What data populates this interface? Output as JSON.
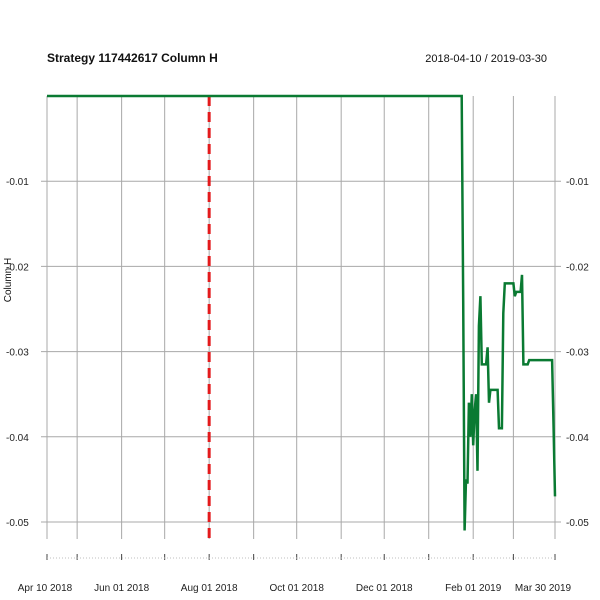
{
  "chart_data": {
    "type": "line",
    "title": "Strategy 117442617 Column H",
    "date_range_label": "2018-04-10 / 2019-03-30",
    "ylabel": "Column H",
    "xlabel": "",
    "x_tick_labels": [
      "Apr 10 2018",
      "Jun 01 2018",
      "Aug 01 2018",
      "Oct 01 2018",
      "Dec 01 2018",
      "Feb 01 2019",
      "Mar 30 2019"
    ],
    "x_tick_dates": [
      "2018-04-10",
      "2018-06-01",
      "2018-08-01",
      "2018-10-01",
      "2018-12-01",
      "2019-02-01",
      "2019-03-30"
    ],
    "x_minor_tick_dates": [
      "2018-05-01",
      "2018-07-01",
      "2018-09-01",
      "2018-11-01",
      "2019-01-01",
      "2019-03-01"
    ],
    "y_tick_labels": [
      "-0.01",
      "-0.02",
      "-0.03",
      "-0.04",
      "-0.05"
    ],
    "y_ticks": [
      -0.01,
      -0.02,
      -0.03,
      -0.04,
      -0.05
    ],
    "xlim": [
      "2018-04-10",
      "2019-03-30"
    ],
    "ylim": [
      -0.052,
      0.0
    ],
    "grid": true,
    "event_line": {
      "date": "2018-08-01",
      "color": "#e31a1c",
      "style": "dashed"
    },
    "series": [
      {
        "color": "#0a7a32",
        "points": [
          [
            "2018-04-10",
            0.0
          ],
          [
            "2019-01-24",
            0.0
          ],
          [
            "2019-01-25",
            -0.024
          ],
          [
            "2019-01-26",
            -0.051
          ],
          [
            "2019-01-27",
            -0.045
          ],
          [
            "2019-01-28",
            -0.0455
          ],
          [
            "2019-01-29",
            -0.036
          ],
          [
            "2019-01-30",
            -0.04
          ],
          [
            "2019-01-31",
            -0.035
          ],
          [
            "2019-02-01",
            -0.041
          ],
          [
            "2019-02-02",
            -0.037
          ],
          [
            "2019-02-03",
            -0.035
          ],
          [
            "2019-02-04",
            -0.044
          ],
          [
            "2019-02-05",
            -0.027
          ],
          [
            "2019-02-06",
            -0.0235
          ],
          [
            "2019-02-07",
            -0.0315
          ],
          [
            "2019-02-10",
            -0.0315
          ],
          [
            "2019-02-11",
            -0.0295
          ],
          [
            "2019-02-12",
            -0.036
          ],
          [
            "2019-02-13",
            -0.0345
          ],
          [
            "2019-02-18",
            -0.0345
          ],
          [
            "2019-02-19",
            -0.039
          ],
          [
            "2019-02-21",
            -0.039
          ],
          [
            "2019-02-22",
            -0.0255
          ],
          [
            "2019-02-23",
            -0.022
          ],
          [
            "2019-03-01",
            -0.022
          ],
          [
            "2019-03-02",
            -0.0235
          ],
          [
            "2019-03-03",
            -0.023
          ],
          [
            "2019-03-06",
            -0.023
          ],
          [
            "2019-03-07",
            -0.021
          ],
          [
            "2019-03-08",
            -0.0315
          ],
          [
            "2019-03-11",
            -0.0315
          ],
          [
            "2019-03-12",
            -0.031
          ],
          [
            "2019-03-28",
            -0.031
          ],
          [
            "2019-03-29",
            -0.039
          ],
          [
            "2019-03-30",
            -0.047
          ]
        ]
      }
    ]
  }
}
